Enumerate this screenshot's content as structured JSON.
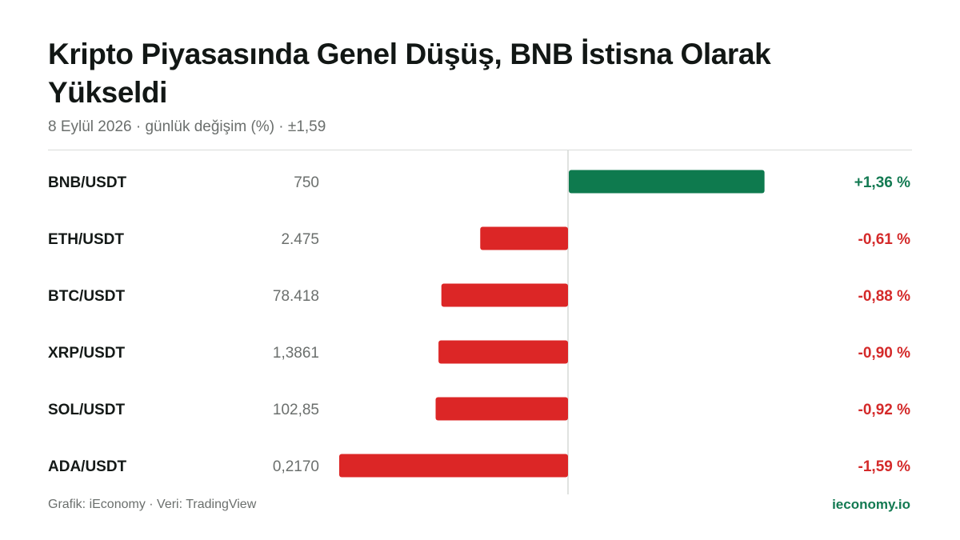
{
  "header": {
    "title": "Kripto Piyasasında Genel Düşüş, BNB İstisna Olarak Yükseldi",
    "subtitle": "8 Eylül 2026 · günlük değişim (%) · ±1,59"
  },
  "footer": {
    "source": "Grafik: iEconomy · Veri: TradingView",
    "brand": "ieconomy.io"
  },
  "colors": {
    "positive": "#0e7a4e",
    "negative": "#dc2626",
    "positive_text": "#137a52",
    "negative_text": "#d42a2a",
    "axis": "#d5d8d6"
  },
  "chart_data": {
    "type": "bar",
    "orientation": "horizontal",
    "title": "Kripto Piyasasında Genel Düşüş, BNB İstisna Olarak Yükseldi",
    "subtitle": "8 Eylül 2026 · günlük değişim (%) · ±1,59",
    "xlim": [
      -1.59,
      1.59
    ],
    "grid": false,
    "rows": [
      {
        "pair": "BNB/USDT",
        "price": "750",
        "change": 1.36,
        "label": "+1,36 %"
      },
      {
        "pair": "ETH/USDT",
        "price": "2.475",
        "change": -0.61,
        "label": "-0,61 %"
      },
      {
        "pair": "BTC/USDT",
        "price": "78.418",
        "change": -0.88,
        "label": "-0,88 %"
      },
      {
        "pair": "XRP/USDT",
        "price": "1,3861",
        "change": -0.9,
        "label": "-0,90 %"
      },
      {
        "pair": "SOL/USDT",
        "price": "102,85",
        "change": -0.92,
        "label": "-0,92 %"
      },
      {
        "pair": "ADA/USDT",
        "price": "0,2170",
        "change": -1.59,
        "label": "-1,59 %"
      }
    ]
  }
}
